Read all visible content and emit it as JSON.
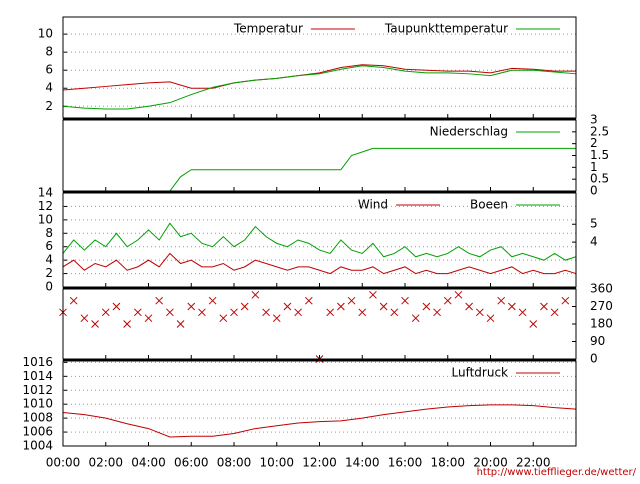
{
  "chart_data": [
    {
      "type": "line",
      "axis_side": "left",
      "grid": true,
      "x": [
        0,
        1,
        2,
        3,
        4,
        5,
        6,
        7,
        8,
        9,
        10,
        11,
        12,
        13,
        14,
        15,
        16,
        17,
        18,
        19,
        20,
        21,
        22,
        23,
        24
      ],
      "ylim": [
        0.7,
        11.9
      ],
      "yticks": [
        2,
        4,
        6,
        8,
        10
      ],
      "series": [
        {
          "name": "Temperatur",
          "color": "#c00000",
          "values": [
            3.8,
            4.0,
            4.2,
            4.4,
            4.6,
            4.7,
            4.0,
            4.0,
            4.6,
            4.9,
            5.1,
            5.4,
            5.7,
            6.3,
            6.6,
            6.5,
            6.1,
            6.0,
            5.9,
            5.9,
            5.7,
            6.2,
            6.1,
            5.9,
            5.9
          ]
        },
        {
          "name": "Taupunkttemperatur",
          "color": "#00a000",
          "values": [
            2.0,
            1.8,
            1.7,
            1.7,
            2.0,
            2.4,
            3.3,
            4.1,
            4.6,
            4.9,
            5.1,
            5.4,
            5.6,
            6.1,
            6.5,
            6.3,
            5.9,
            5.7,
            5.7,
            5.6,
            5.4,
            6.0,
            6.0,
            5.8,
            5.6
          ]
        }
      ]
    },
    {
      "type": "line",
      "axis_side": "right",
      "grid": false,
      "x": [
        0,
        5,
        5.5,
        6,
        13,
        13.5,
        14.5,
        24
      ],
      "ylim": [
        0,
        3
      ],
      "yticks": [
        0,
        0.5,
        1,
        1.5,
        2,
        2.5,
        3
      ],
      "series": [
        {
          "name": "Niederschlag",
          "color": "#00a000",
          "values": [
            0,
            0,
            0.6,
            0.9,
            0.9,
            1.5,
            1.8,
            1.8
          ]
        }
      ]
    },
    {
      "type": "line",
      "axis_side": "left",
      "grid": true,
      "x": [
        0,
        0.5,
        1,
        1.5,
        2,
        2.5,
        3,
        3.5,
        4,
        4.5,
        5,
        5.5,
        6,
        6.5,
        7,
        7.5,
        8,
        8.5,
        9,
        9.5,
        10,
        10.5,
        11,
        11.5,
        12,
        12.5,
        13,
        13.5,
        14,
        14.5,
        15,
        15.5,
        16,
        16.5,
        17,
        17.5,
        18,
        18.5,
        19,
        19.5,
        20,
        20.5,
        21,
        21.5,
        22,
        22.5,
        23,
        23.5,
        24
      ],
      "ylim": [
        0,
        14
      ],
      "yticks": [
        0,
        2,
        4,
        6,
        8,
        10,
        12,
        14
      ],
      "y2_scale": "beaufort",
      "y2ticks": [
        4,
        5
      ],
      "series": [
        {
          "name": "Wind",
          "color": "#c00000",
          "values": [
            3,
            4,
            2.5,
            3.5,
            3,
            4,
            2.5,
            3,
            4,
            3,
            5,
            3.5,
            4,
            3,
            3,
            3.5,
            2.5,
            3,
            4,
            3.5,
            3,
            2.5,
            3,
            3,
            2.5,
            2,
            3,
            2.5,
            2.5,
            3,
            2,
            2.5,
            3,
            2,
            2.5,
            2,
            2,
            2.5,
            3,
            2.5,
            2,
            2.5,
            3,
            2,
            2.5,
            2,
            2,
            2.5,
            2
          ]
        },
        {
          "name": "Boeen",
          "color": "#00a000",
          "values": [
            5,
            7,
            5.5,
            7,
            6,
            8,
            6,
            7,
            8.5,
            7,
            9.5,
            7.5,
            8,
            6.5,
            6,
            7.5,
            6,
            7,
            9,
            7.5,
            6.5,
            6,
            7,
            6.5,
            5.5,
            5,
            7,
            5.5,
            5,
            6.5,
            4.5,
            5,
            6,
            4.5,
            5,
            4.5,
            5,
            6,
            5,
            4.5,
            5.5,
            6,
            4.5,
            5,
            4.5,
            4,
            5,
            4,
            4.5
          ]
        }
      ]
    },
    {
      "type": "scatter",
      "axis_side": "right",
      "grid": false,
      "x": [
        0,
        0.5,
        1,
        1.5,
        2,
        2.5,
        3,
        3.5,
        4,
        4.5,
        5,
        5.5,
        6,
        6.5,
        7,
        7.5,
        8,
        8.5,
        9,
        9.5,
        10,
        10.5,
        11,
        11.5,
        12,
        12.5,
        13,
        13.5,
        14,
        14.5,
        15,
        15.5,
        16,
        16.5,
        17,
        17.5,
        18,
        18.5,
        19,
        19.5,
        20,
        20.5,
        21,
        21.5,
        22,
        22.5,
        23,
        23.5
      ],
      "ylim": [
        0,
        360
      ],
      "yticks": [
        0,
        90,
        180,
        270,
        360
      ],
      "series": [
        {
          "color": "#c00000",
          "values": [
            240,
            300,
            210,
            180,
            240,
            270,
            180,
            240,
            210,
            300,
            240,
            180,
            270,
            240,
            300,
            210,
            240,
            270,
            330,
            240,
            210,
            270,
            240,
            300,
            0,
            240,
            270,
            300,
            240,
            330,
            270,
            240,
            300,
            210,
            270,
            240,
            300,
            330,
            270,
            240,
            210,
            300,
            270,
            240,
            180,
            270,
            240,
            300
          ]
        }
      ]
    },
    {
      "type": "line",
      "axis_side": "left",
      "grid": true,
      "x": [
        0,
        1,
        2,
        3,
        4,
        5,
        6,
        7,
        8,
        9,
        10,
        11,
        12,
        13,
        14,
        15,
        16,
        17,
        18,
        19,
        20,
        21,
        22,
        23,
        24
      ],
      "ylim": [
        1004,
        1016.2
      ],
      "yticks": [
        1004,
        1006,
        1008,
        1010,
        1012,
        1014,
        1016
      ],
      "series": [
        {
          "name": "Luftdruck",
          "color": "#c00000",
          "values": [
            1008.8,
            1008.5,
            1008.0,
            1007.2,
            1006.5,
            1005.3,
            1005.4,
            1005.4,
            1005.8,
            1006.5,
            1006.9,
            1007.3,
            1007.5,
            1007.6,
            1008.0,
            1008.5,
            1008.9,
            1009.3,
            1009.6,
            1009.8,
            1009.9,
            1009.9,
            1009.8,
            1009.5,
            1009.3
          ]
        }
      ]
    }
  ],
  "xlim": [
    0,
    24
  ],
  "xticks": [
    {
      "value": 0,
      "label": "00:00"
    },
    {
      "value": 2,
      "label": "02:00"
    },
    {
      "value": 4,
      "label": "04:00"
    },
    {
      "value": 6,
      "label": "06:00"
    },
    {
      "value": 8,
      "label": "08:00"
    },
    {
      "value": 10,
      "label": "10:00"
    },
    {
      "value": 12,
      "label": "12:00"
    },
    {
      "value": 14,
      "label": "14:00"
    },
    {
      "value": 16,
      "label": "16:00"
    },
    {
      "value": 18,
      "label": "18:00"
    },
    {
      "value": 20,
      "label": "20:00"
    },
    {
      "value": 22,
      "label": "22:00"
    }
  ],
  "source": "http://www.tiefflieger.de/wetter/"
}
